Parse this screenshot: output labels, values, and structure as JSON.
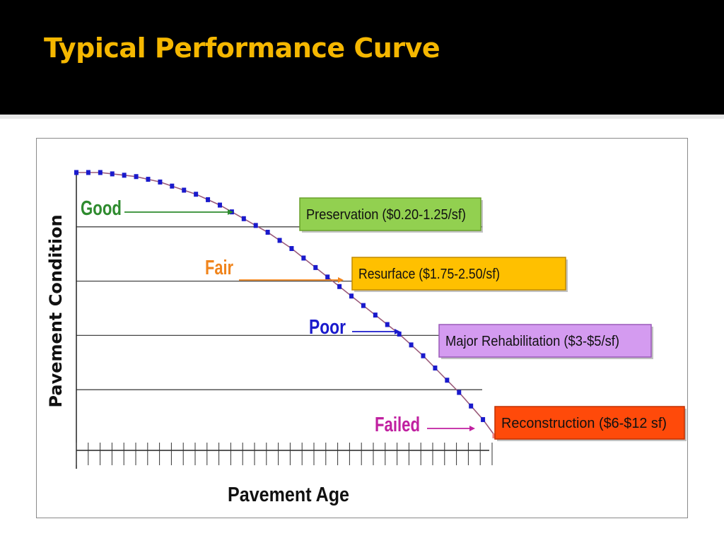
{
  "slide": {
    "title": "Typical Performance Curve"
  },
  "colors": {
    "title_text": "#f5b700",
    "background": "#000000",
    "curve_line": "#9a5a7a",
    "curve_marker": "#1a1acc",
    "end_marker": "#f08080",
    "grid_line": "#444444",
    "good": "#2e8b2e",
    "fair": "#f0841c",
    "poor": "#1a1acc",
    "failed": "#c020a0"
  },
  "chart_data": {
    "type": "line",
    "title": "",
    "xlabel": "Pavement Age",
    "ylabel": "Pavement Condition",
    "xlim": [
      0,
      35
    ],
    "ylim": [
      0,
      100
    ],
    "x_tick_count": 36,
    "grid": "horizontal",
    "gridlines_y": [
      20,
      40,
      60,
      80
    ],
    "series": [
      {
        "x": [
          0,
          1,
          2,
          3,
          4,
          5,
          6,
          7,
          8,
          9,
          10,
          11,
          12,
          13,
          14,
          15,
          16,
          17,
          18,
          19,
          20,
          21,
          22,
          23,
          24,
          25,
          26,
          27,
          28,
          29,
          30,
          31,
          32,
          33,
          34
        ],
        "values": [
          100,
          100,
          100,
          99.5,
          99,
          98.5,
          97.5,
          96.5,
          95,
          93.5,
          92,
          90,
          88,
          85.5,
          83,
          80.5,
          78,
          75,
          72,
          68.5,
          65,
          61.5,
          58,
          54.5,
          51,
          47.5,
          44,
          40.5,
          36.5,
          32.5,
          28,
          23.5,
          19,
          14,
          9
        ]
      }
    ],
    "end_point": {
      "x": 35,
      "y": 3
    },
    "condition_labels": [
      {
        "text": "Good",
        "color_key": "good"
      },
      {
        "text": "Fair",
        "color_key": "fair"
      },
      {
        "text": "Poor",
        "color_key": "poor"
      },
      {
        "text": "Failed",
        "color_key": "failed"
      }
    ],
    "callouts": [
      {
        "text": "Preservation ($0.20-1.25/sf)",
        "fill": "#92d050",
        "border": "#6aa12c"
      },
      {
        "text": "Resurface ($1.75-2.50/sf)",
        "fill": "#ffc000",
        "border": "#c08a00"
      },
      {
        "text": "Major Rehabilitation  ($3-$5/sf)",
        "fill": "#d49bf0",
        "border": "#9a5ab8"
      },
      {
        "text": "Reconstruction ($6-$12 sf)",
        "fill": "#ff4a0a",
        "border": "#c03000"
      }
    ]
  }
}
